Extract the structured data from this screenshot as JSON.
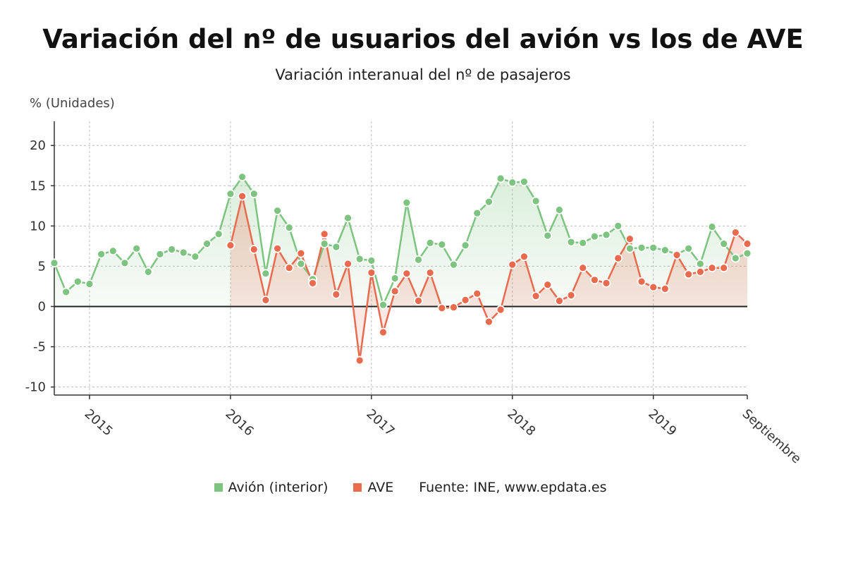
{
  "colors": {
    "avion": "#7cc47f",
    "ave": "#ea6a4e",
    "grid": "#bdbdbd",
    "zero": "#222222"
  },
  "chart_data": {
    "type": "line",
    "title": "Variación del nº de usuarios del avión vs los de AVE",
    "subtitle": "Variación interanual del nº de pasajeros",
    "ylabel": "% (Unidades)",
    "ylim": [
      -11,
      23
    ],
    "yticks": [
      20,
      15,
      10,
      5,
      0,
      -5,
      -10
    ],
    "xticks": [
      {
        "label": "2015",
        "index": 3
      },
      {
        "label": "2016",
        "index": 15
      },
      {
        "label": "2017",
        "index": 27
      },
      {
        "label": "2018",
        "index": 39
      },
      {
        "label": "2019",
        "index": 51
      },
      {
        "label": "Septiembre",
        "index": 59
      }
    ],
    "series": [
      {
        "name": "Avión (interior)",
        "color_key": "avion",
        "start_index": 0,
        "values": [
          5.4,
          1.8,
          3.1,
          2.8,
          6.5,
          6.9,
          5.4,
          7.2,
          4.3,
          6.5,
          7.1,
          6.7,
          6.2,
          7.8,
          9.0,
          14.0,
          16.1,
          14.0,
          4.1,
          11.9,
          9.8,
          5.3,
          3.4,
          7.8,
          7.4,
          11.0,
          5.9,
          5.7,
          0.2,
          3.5,
          12.9,
          5.8,
          7.9,
          7.7,
          5.2,
          7.6,
          11.6,
          13.0,
          15.9,
          15.4,
          15.5,
          13.1,
          8.8,
          12.0,
          8.0,
          7.9,
          8.7,
          8.9,
          10.0,
          7.2,
          7.3,
          7.3,
          7.0,
          6.5,
          7.2,
          5.3,
          9.9,
          7.8,
          6.0,
          6.6
        ]
      },
      {
        "name": "AVE",
        "color_key": "ave",
        "start_index": 15,
        "values": [
          7.6,
          13.7,
          7.1,
          0.8,
          7.2,
          4.8,
          6.6,
          2.9,
          9.0,
          1.5,
          5.3,
          -6.7,
          4.2,
          -3.2,
          1.9,
          4.1,
          0.7,
          4.2,
          -0.2,
          -0.1,
          0.8,
          1.6,
          -1.9,
          -0.4,
          5.2,
          6.2,
          1.3,
          2.7,
          0.7,
          1.4,
          4.8,
          3.3,
          2.9,
          6.0,
          8.4,
          3.1,
          2.4,
          2.2,
          6.4,
          4.0,
          4.3,
          4.8,
          4.8,
          9.2,
          7.8
        ]
      }
    ],
    "legend_position": "bottom-center"
  },
  "legend": {
    "avion_label": "Avión (interior)",
    "ave_label": "AVE",
    "source": "Fuente: INE, www.epdata.es"
  }
}
